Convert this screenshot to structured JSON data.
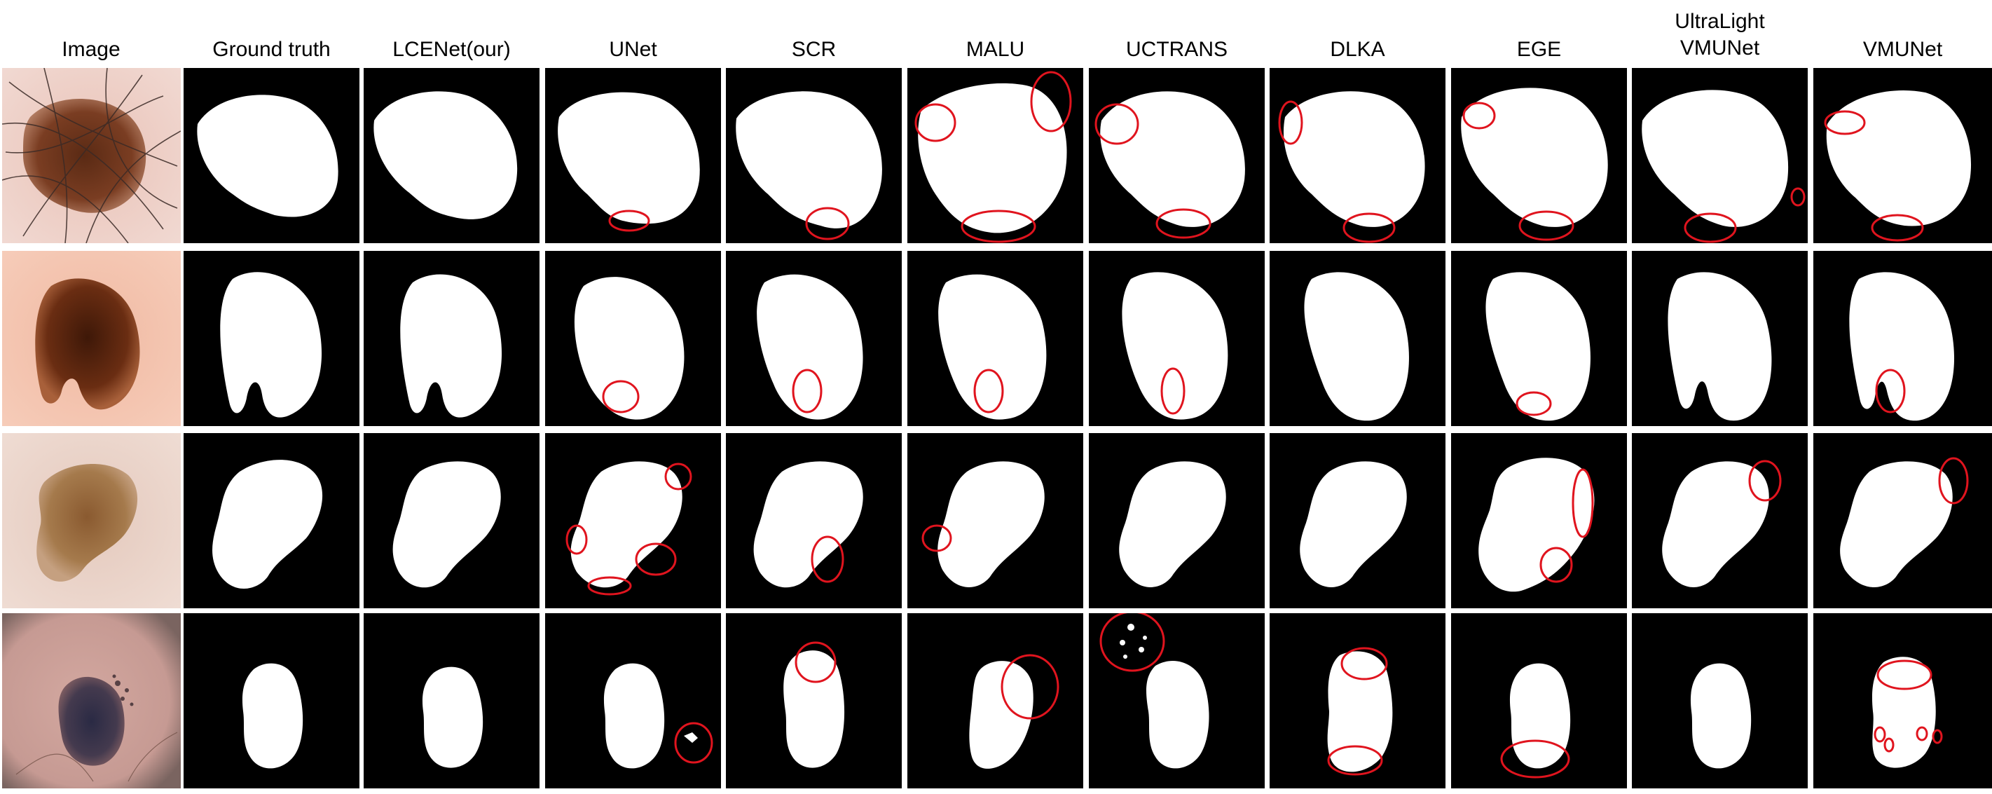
{
  "headers": {
    "image": "Image",
    "ground_truth": "Ground truth",
    "lcenet": "LCENet(our)",
    "unet": "UNet",
    "scr": "SCR",
    "malu": "MALU",
    "uctrans": "UCTRANS",
    "dlka": "DLKA",
    "ege": "EGE",
    "ultralight_line1": "UltraLight",
    "ultralight_line2": "VMUNet",
    "vmunet": "VMUNet"
  },
  "colors": {
    "mask_background": "#000000",
    "lesion_mask": "#ffffff",
    "error_circle": "#e0141e"
  },
  "row_count": 4,
  "column_count": 11
}
